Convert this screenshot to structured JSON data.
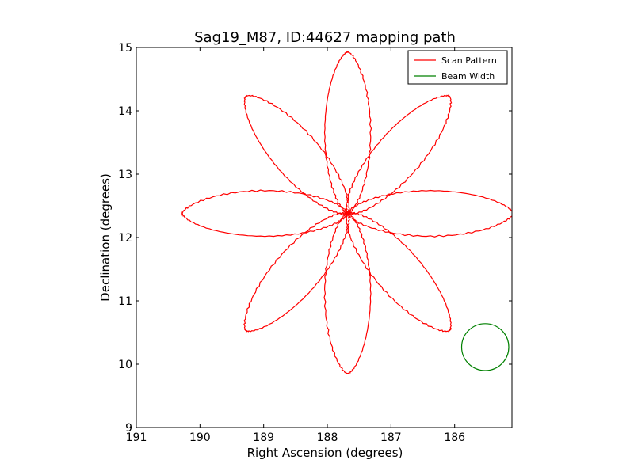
{
  "chart_data": {
    "type": "line",
    "title": "Sag19_M87, ID:44627 mapping path",
    "xlabel": "Right Ascension (degrees)",
    "ylabel": "Declination (degrees)",
    "xlim": [
      191.0,
      185.1
    ],
    "ylim": [
      9,
      15
    ],
    "x_inverted": true,
    "xticks": [
      191,
      190,
      189,
      188,
      187,
      186
    ],
    "yticks": [
      9,
      10,
      11,
      12,
      13,
      14,
      15
    ],
    "grid": false,
    "legend_position": "top-right",
    "series": [
      {
        "name": "Scan Pattern",
        "color": "#ff0000",
        "pattern": "8-petal rosette",
        "center": [
          187.68,
          12.38
        ],
        "petal_tips": [
          [
            187.68,
            14.93
          ],
          [
            186.08,
            14.23
          ],
          [
            185.08,
            12.38
          ],
          [
            186.08,
            10.53
          ],
          [
            187.68,
            9.85
          ],
          [
            189.28,
            10.53
          ],
          [
            190.28,
            12.38
          ],
          [
            189.28,
            14.23
          ]
        ]
      },
      {
        "name": "Beam Width",
        "color": "#008000",
        "shape": "circle",
        "center": [
          185.52,
          10.27
        ],
        "radius_deg": 0.37
      }
    ]
  }
}
